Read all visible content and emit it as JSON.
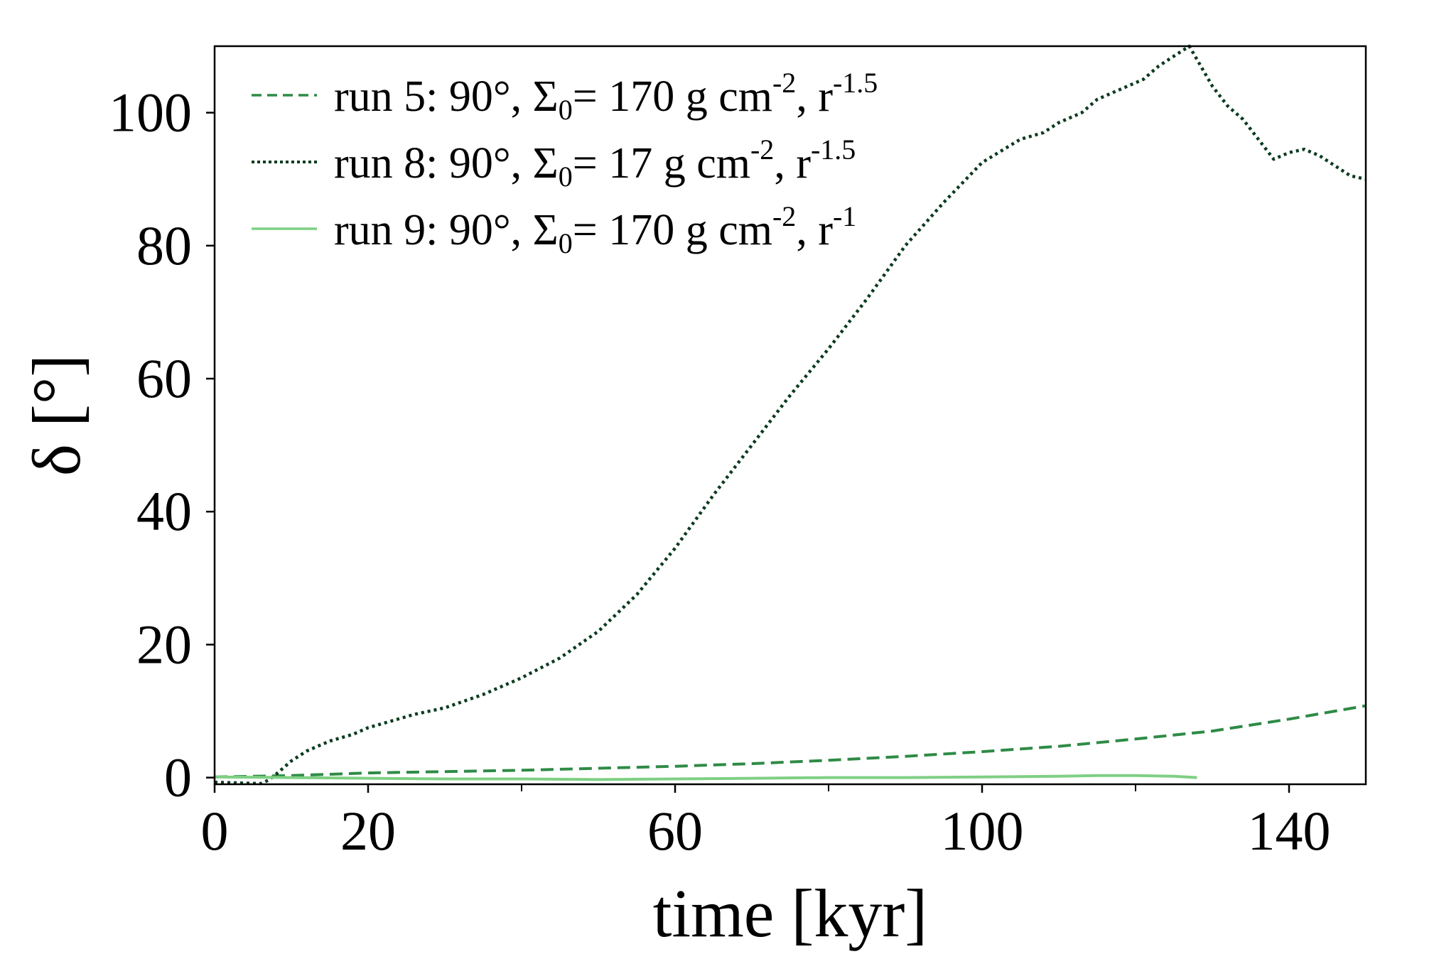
{
  "chart_data": {
    "type": "line",
    "title": "",
    "xlabel": "time [kyr]",
    "ylabel": "δ [°]",
    "xlim": [
      0,
      150
    ],
    "ylim": [
      -1,
      110
    ],
    "xticks_major": [
      0,
      20,
      60,
      100,
      140
    ],
    "xticks_minor": [
      40,
      80,
      120
    ],
    "yticks": [
      0,
      20,
      40,
      60,
      80,
      100
    ],
    "grid": false,
    "legend_position": "top-left",
    "series": [
      {
        "name": "run 5",
        "label_prefix": "run 5: 90°, Σ",
        "label_sub": "0",
        "label_mid": "= 170 g cm",
        "label_sup1": "-2",
        "label_comma": ", r",
        "label_sup2": "-1.5",
        "color": "#2e8b46",
        "style": "dashed",
        "x": [
          0,
          5,
          10,
          20,
          30,
          40,
          50,
          60,
          70,
          80,
          90,
          100,
          110,
          120,
          130,
          140,
          150
        ],
        "y": [
          0.1,
          0.2,
          0.3,
          0.7,
          0.9,
          1.1,
          1.4,
          1.7,
          2.1,
          2.6,
          3.2,
          3.9,
          4.7,
          5.8,
          7.0,
          8.8,
          10.8
        ]
      },
      {
        "name": "run 8",
        "label_prefix": "run 8: 90°, Σ",
        "label_sub": "0",
        "label_mid": "=   17 g cm",
        "label_sup1": "-2",
        "label_comma": ", r",
        "label_sup2": "-1.5",
        "color": "#0b3b1f",
        "style": "dotted",
        "x": [
          0,
          3,
          6,
          7,
          8,
          10,
          12,
          15,
          18,
          20,
          23,
          26,
          30,
          35,
          40,
          45,
          50,
          55,
          60,
          65,
          70,
          75,
          80,
          85,
          90,
          95,
          100,
          105,
          108,
          110,
          113,
          115,
          118,
          121,
          123,
          125,
          127,
          128,
          130,
          132,
          134,
          136,
          138,
          140,
          142,
          144,
          146,
          148,
          150
        ],
        "y": [
          -0.7,
          -0.8,
          -0.9,
          -0.4,
          0.5,
          2.5,
          4.0,
          5.5,
          6.5,
          7.5,
          8.5,
          9.5,
          10.5,
          12.5,
          15.0,
          18.0,
          22.0,
          27.5,
          34.5,
          42.5,
          50.0,
          57.5,
          64.5,
          72.0,
          80.0,
          86.5,
          92.5,
          96.0,
          97.0,
          98.5,
          100.0,
          102.0,
          103.5,
          105.0,
          107.0,
          108.5,
          110.0,
          108.0,
          104.0,
          101.0,
          99.0,
          96.0,
          93.0,
          94.0,
          94.5,
          93.5,
          92.0,
          90.5,
          90.0
        ]
      },
      {
        "name": "run 9",
        "label_prefix": "run 9: 90°, Σ",
        "label_sub": "0",
        "label_mid": "= 170 g cm",
        "label_sup1": "-2",
        "label_comma": ", r",
        "label_sup2": "-1",
        "color": "#7fcf84",
        "style": "solid",
        "x": [
          0,
          10,
          20,
          30,
          40,
          50,
          60,
          70,
          80,
          90,
          100,
          110,
          115,
          120,
          125,
          128
        ],
        "y": [
          0.1,
          0.0,
          -0.1,
          -0.2,
          -0.2,
          -0.3,
          -0.2,
          -0.1,
          0.0,
          0.0,
          0.1,
          0.2,
          0.3,
          0.3,
          0.2,
          0.0
        ]
      }
    ]
  }
}
